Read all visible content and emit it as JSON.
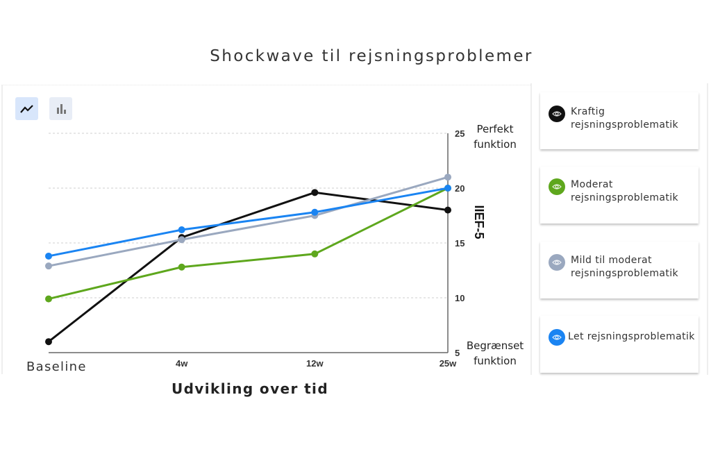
{
  "title": "Shockwave til rejsningsproblemer",
  "toolbar": {
    "line_view": {
      "icon": "line-chart-icon",
      "active": true
    },
    "bar_view": {
      "icon": "bar-chart-icon",
      "active": false
    }
  },
  "axes": {
    "x_label": "Udvikling over tid",
    "x_ticks": [
      "Baseline",
      "4w",
      "12w",
      "25w"
    ],
    "y_label": "IIEF-5",
    "y_ticks": [
      "5",
      "10",
      "15",
      "20",
      "25"
    ],
    "y_top_annotation": [
      "Perfekt",
      "funktion"
    ],
    "y_bottom_annotation": [
      "Begrænset",
      "funktion"
    ]
  },
  "legend": [
    {
      "label_lines": [
        "Kraftig",
        "rejsningsproblematik"
      ],
      "color": "#111111",
      "icon": "eye-icon"
    },
    {
      "label_lines": [
        "Moderat",
        "rejsningsproblematik"
      ],
      "color": "#5ea71d",
      "icon": "eye-icon"
    },
    {
      "label_lines": [
        "Mild til moderat",
        "rejsningsproblematik"
      ],
      "color": "#9aa8bf",
      "icon": "eye-icon"
    },
    {
      "label_lines": [
        "Let rejsningsproblematik"
      ],
      "color": "#1a84f2",
      "icon": "eye-icon"
    }
  ],
  "chart_data": {
    "type": "line",
    "title": "Shockwave til rejsningsproblemer",
    "xlabel": "Udvikling over tid",
    "ylabel": "IIEF-5",
    "categories": [
      "Baseline",
      "4w",
      "12w",
      "25w"
    ],
    "ylim": [
      5,
      25
    ],
    "yticks": [
      5,
      10,
      15,
      20,
      25
    ],
    "grid": "horizontal dashed",
    "y_axis_position": "right",
    "legend_position": "right",
    "annotations": [
      "Perfekt funktion (at 25)",
      "Begrænset funktion (at 5)"
    ],
    "series": [
      {
        "name": "Kraftig rejsningsproblematik",
        "color": "#111111",
        "values": [
          6.0,
          15.5,
          19.6,
          18.0
        ]
      },
      {
        "name": "Moderat rejsningsproblematik",
        "color": "#5ea71d",
        "values": [
          9.9,
          12.8,
          14.0,
          20.0
        ]
      },
      {
        "name": "Mild til moderat rejsningsproblematik",
        "color": "#9aa8bf",
        "values": [
          12.9,
          15.3,
          17.5,
          21.0
        ]
      },
      {
        "name": "Let rejsningsproblematik",
        "color": "#1a84f2",
        "values": [
          13.8,
          16.2,
          17.8,
          20.0
        ]
      }
    ]
  }
}
